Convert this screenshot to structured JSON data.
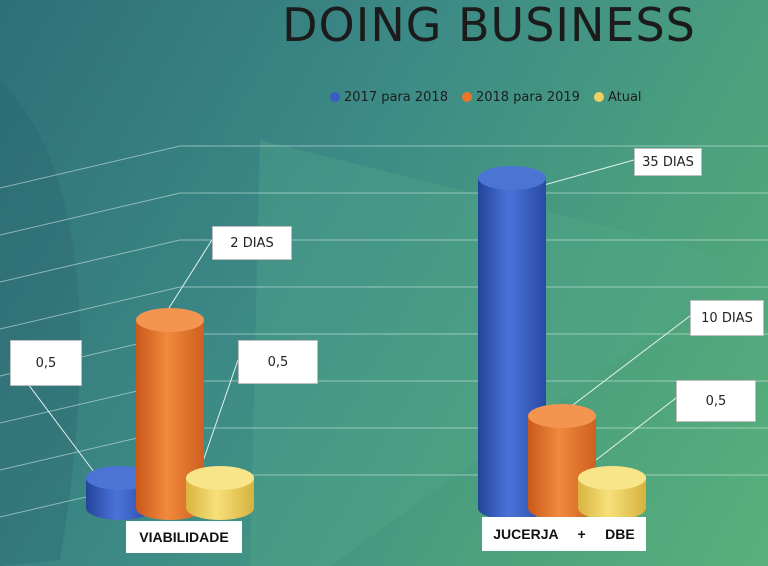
{
  "colors": {
    "series_2017": "#3a5fc4",
    "series_2018": "#e8752a",
    "series_atual": "#f0d060"
  },
  "chart_data": {
    "type": "bar",
    "title": "DOING BUSINESS",
    "categories": [
      "VIABILIDADE",
      "JUCERJA     +     DBE"
    ],
    "series": [
      {
        "name": "2017 para 2018",
        "values": [
          0.5,
          35
        ]
      },
      {
        "name": "2018 para 2019",
        "values": [
          2,
          10
        ]
      },
      {
        "name": "Atual",
        "values": [
          0.5,
          0.5
        ]
      }
    ],
    "data_labels": [
      [
        "0,5",
        "35 DIAS"
      ],
      [
        "2 DIAS",
        "10 DIAS"
      ],
      [
        "0,5",
        "0,5"
      ]
    ],
    "legend_position": "top",
    "grid": true
  }
}
